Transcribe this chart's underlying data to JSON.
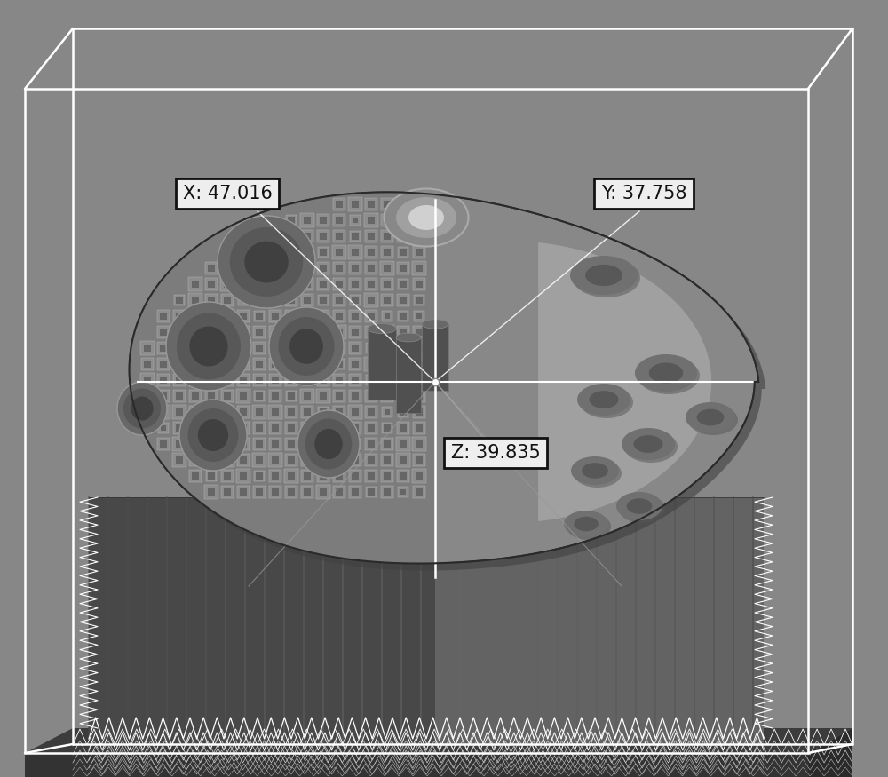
{
  "bg_color": "#878787",
  "box_line_color": "#ffffff",
  "label_x": "X: 47.016",
  "label_y": "Y: 37.758",
  "label_z": "Z: 39.835",
  "annotation_bg": "#eeeeee",
  "annotation_fg": "#111111",
  "figsize": [
    10.0,
    8.75
  ],
  "dpi": 100,
  "stem_left_color": "#444444",
  "stem_right_color": "#606060",
  "stem_front_color": "#505050",
  "implant_body_color": "#909090",
  "implant_highlight": "#c0c0c0",
  "implant_shadow": "#5a5a5a",
  "cross_section_color": "#7a7a7a",
  "trabecular_light": "#aaaaaa",
  "trabecular_dark": "#666666",
  "floor_top_color": "#3a3a3a",
  "floor_side_color": "#2a2a2a"
}
